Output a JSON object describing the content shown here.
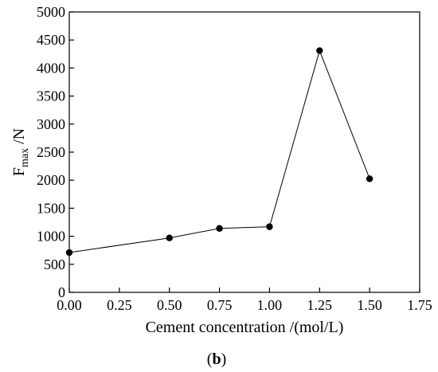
{
  "chart_data": {
    "type": "line",
    "title": "",
    "xlabel": "Cement concentration /(mol/L)",
    "ylabel": {
      "main": "F",
      "sub": "max",
      "tail": " /N"
    },
    "xlim": [
      0.0,
      1.75
    ],
    "ylim": [
      0,
      5000
    ],
    "xticks": [
      "0.00",
      "0.25",
      "0.50",
      "0.75",
      "1.00",
      "1.25",
      "1.50",
      "1.75"
    ],
    "yticks": [
      "0",
      "500",
      "1000",
      "1500",
      "2000",
      "2500",
      "3000",
      "3500",
      "4000",
      "4500",
      "5000"
    ],
    "grid": false,
    "series": [
      {
        "x": [
          0.0,
          0.5,
          0.75,
          1.0,
          1.25,
          1.5
        ],
        "y": [
          710,
          970,
          1140,
          1170,
          4310,
          2025
        ]
      }
    ],
    "colors": {
      "line": "#000000",
      "marker": "#000000"
    }
  },
  "panel_label": {
    "open": "(",
    "letter": "b",
    "close": ")"
  }
}
